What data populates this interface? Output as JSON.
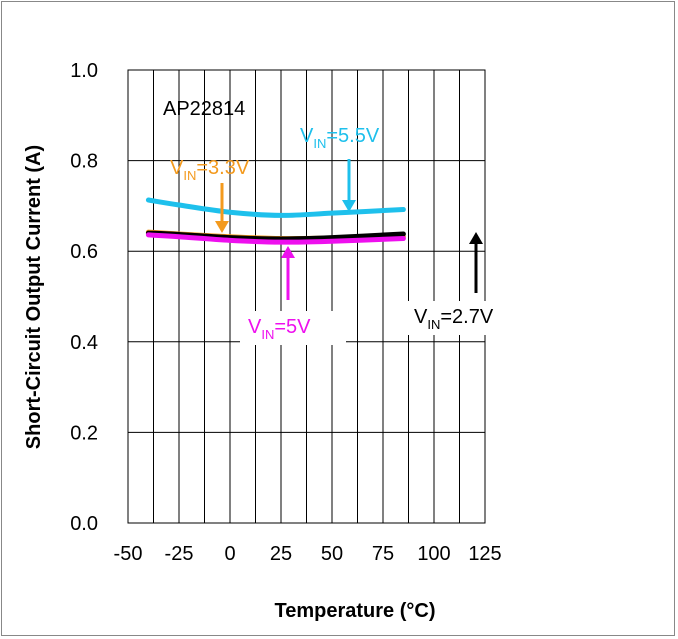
{
  "chart_data": {
    "type": "line",
    "title": "",
    "annotation_text": "AP22814",
    "xlabel": "Temperature (°C)",
    "ylabel": "Short-Circuit Output Current (A)",
    "xlim": [
      -50,
      125
    ],
    "ylim": [
      0.0,
      1.0
    ],
    "x_ticks": [
      -50,
      -25,
      0,
      25,
      50,
      75,
      100,
      125
    ],
    "y_ticks": [
      0.0,
      0.2,
      0.4,
      0.6,
      0.8,
      1.0
    ],
    "x_tick_labels": [
      "-50",
      "-25",
      "0",
      "25",
      "50",
      "75",
      "100",
      "125"
    ],
    "y_tick_labels": [
      "0.0",
      "0.2",
      "0.4",
      "0.6",
      "0.8",
      "1.0"
    ],
    "grid": true,
    "legend": "none",
    "series": [
      {
        "name": "VIN=5.5V",
        "label_main": "V",
        "label_sub": "IN",
        "label_tail": "=5.5V",
        "color": "#1ec0ec",
        "x": [
          -40,
          -25,
          0,
          25,
          50,
          85
        ],
        "y": [
          0.713,
          0.702,
          0.686,
          0.679,
          0.684,
          0.692
        ]
      },
      {
        "name": "VIN=3.3V",
        "label_main": "V",
        "label_sub": "IN",
        "label_tail": "=3.3V",
        "color": "#f39a1e",
        "x": [
          -40,
          -25,
          0,
          25,
          50,
          85
        ],
        "y": [
          0.642,
          0.638,
          0.632,
          0.628,
          0.629,
          0.632
        ]
      },
      {
        "name": "VIN=2.7V",
        "label_main": "V",
        "label_sub": "IN",
        "label_tail": "=2.7V",
        "color": "#000000",
        "x": [
          -40,
          -25,
          0,
          25,
          50,
          85
        ],
        "y": [
          0.64,
          0.637,
          0.63,
          0.627,
          0.63,
          0.638
        ]
      },
      {
        "name": "VIN=5V",
        "label_main": "V",
        "label_sub": "IN",
        "label_tail": "=5V",
        "color": "#ee10ee",
        "x": [
          -40,
          -25,
          0,
          25,
          50,
          85
        ],
        "y": [
          0.636,
          0.632,
          0.624,
          0.62,
          0.622,
          0.628
        ]
      }
    ]
  }
}
